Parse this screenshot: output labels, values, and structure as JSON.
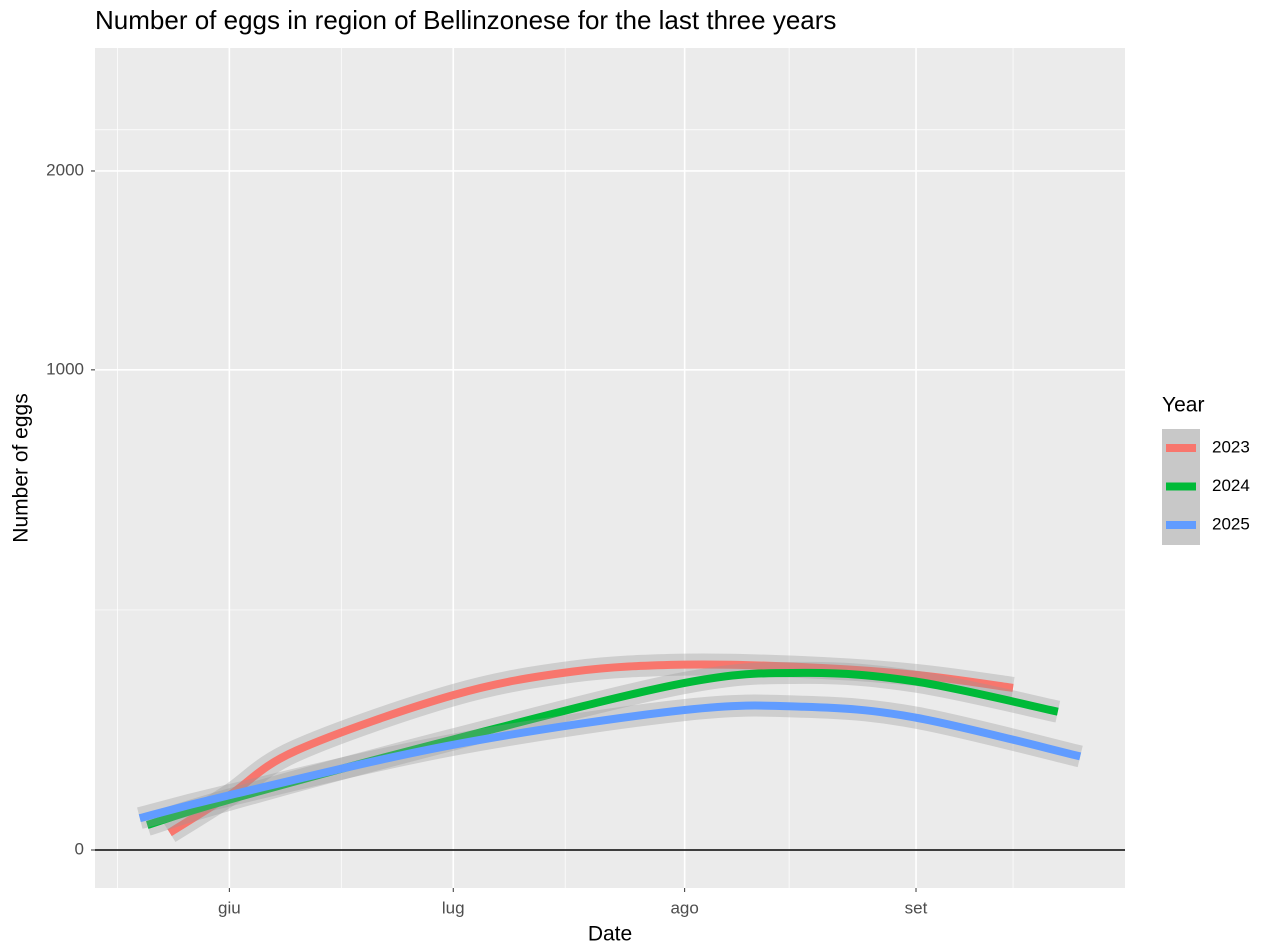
{
  "chart_data": {
    "type": "line",
    "title": "Number of eggs in region of Bellinzonese for the last three years",
    "x_label": "Date",
    "y_label": "Number of eggs",
    "legend_title": "Year",
    "yscale": "sqrt",
    "grid": true,
    "hline": 0,
    "xlim": [
      134,
      272
    ],
    "xticks": [
      {
        "value": 152,
        "label": "giu"
      },
      {
        "value": 182,
        "label": "lug"
      },
      {
        "value": 213,
        "label": "ago"
      },
      {
        "value": 244,
        "label": "set"
      }
    ],
    "ylim": [
      0,
      2790
    ],
    "yticks": [
      0,
      1000,
      2000
    ],
    "series": [
      {
        "name": "2023",
        "color": "#F8766D",
        "x": [
          144,
          152,
          161,
          182,
          198,
          213,
          229,
          244,
          257
        ],
        "values": [
          1.3,
          13,
          43,
          104,
          138,
          149,
          145,
          133,
          114
        ]
      },
      {
        "name": "2024",
        "color": "#00BA38",
        "x": [
          141,
          152,
          182,
          213,
          229,
          244,
          263
        ],
        "values": [
          2.7,
          11,
          53,
          121,
          136,
          123,
          83
        ]
      },
      {
        "name": "2025",
        "color": "#619CFF",
        "x": [
          140,
          152,
          182,
          213,
          229,
          244,
          266
        ],
        "values": [
          4.4,
          13,
          48,
          85,
          89,
          76,
          38
        ]
      }
    ]
  }
}
